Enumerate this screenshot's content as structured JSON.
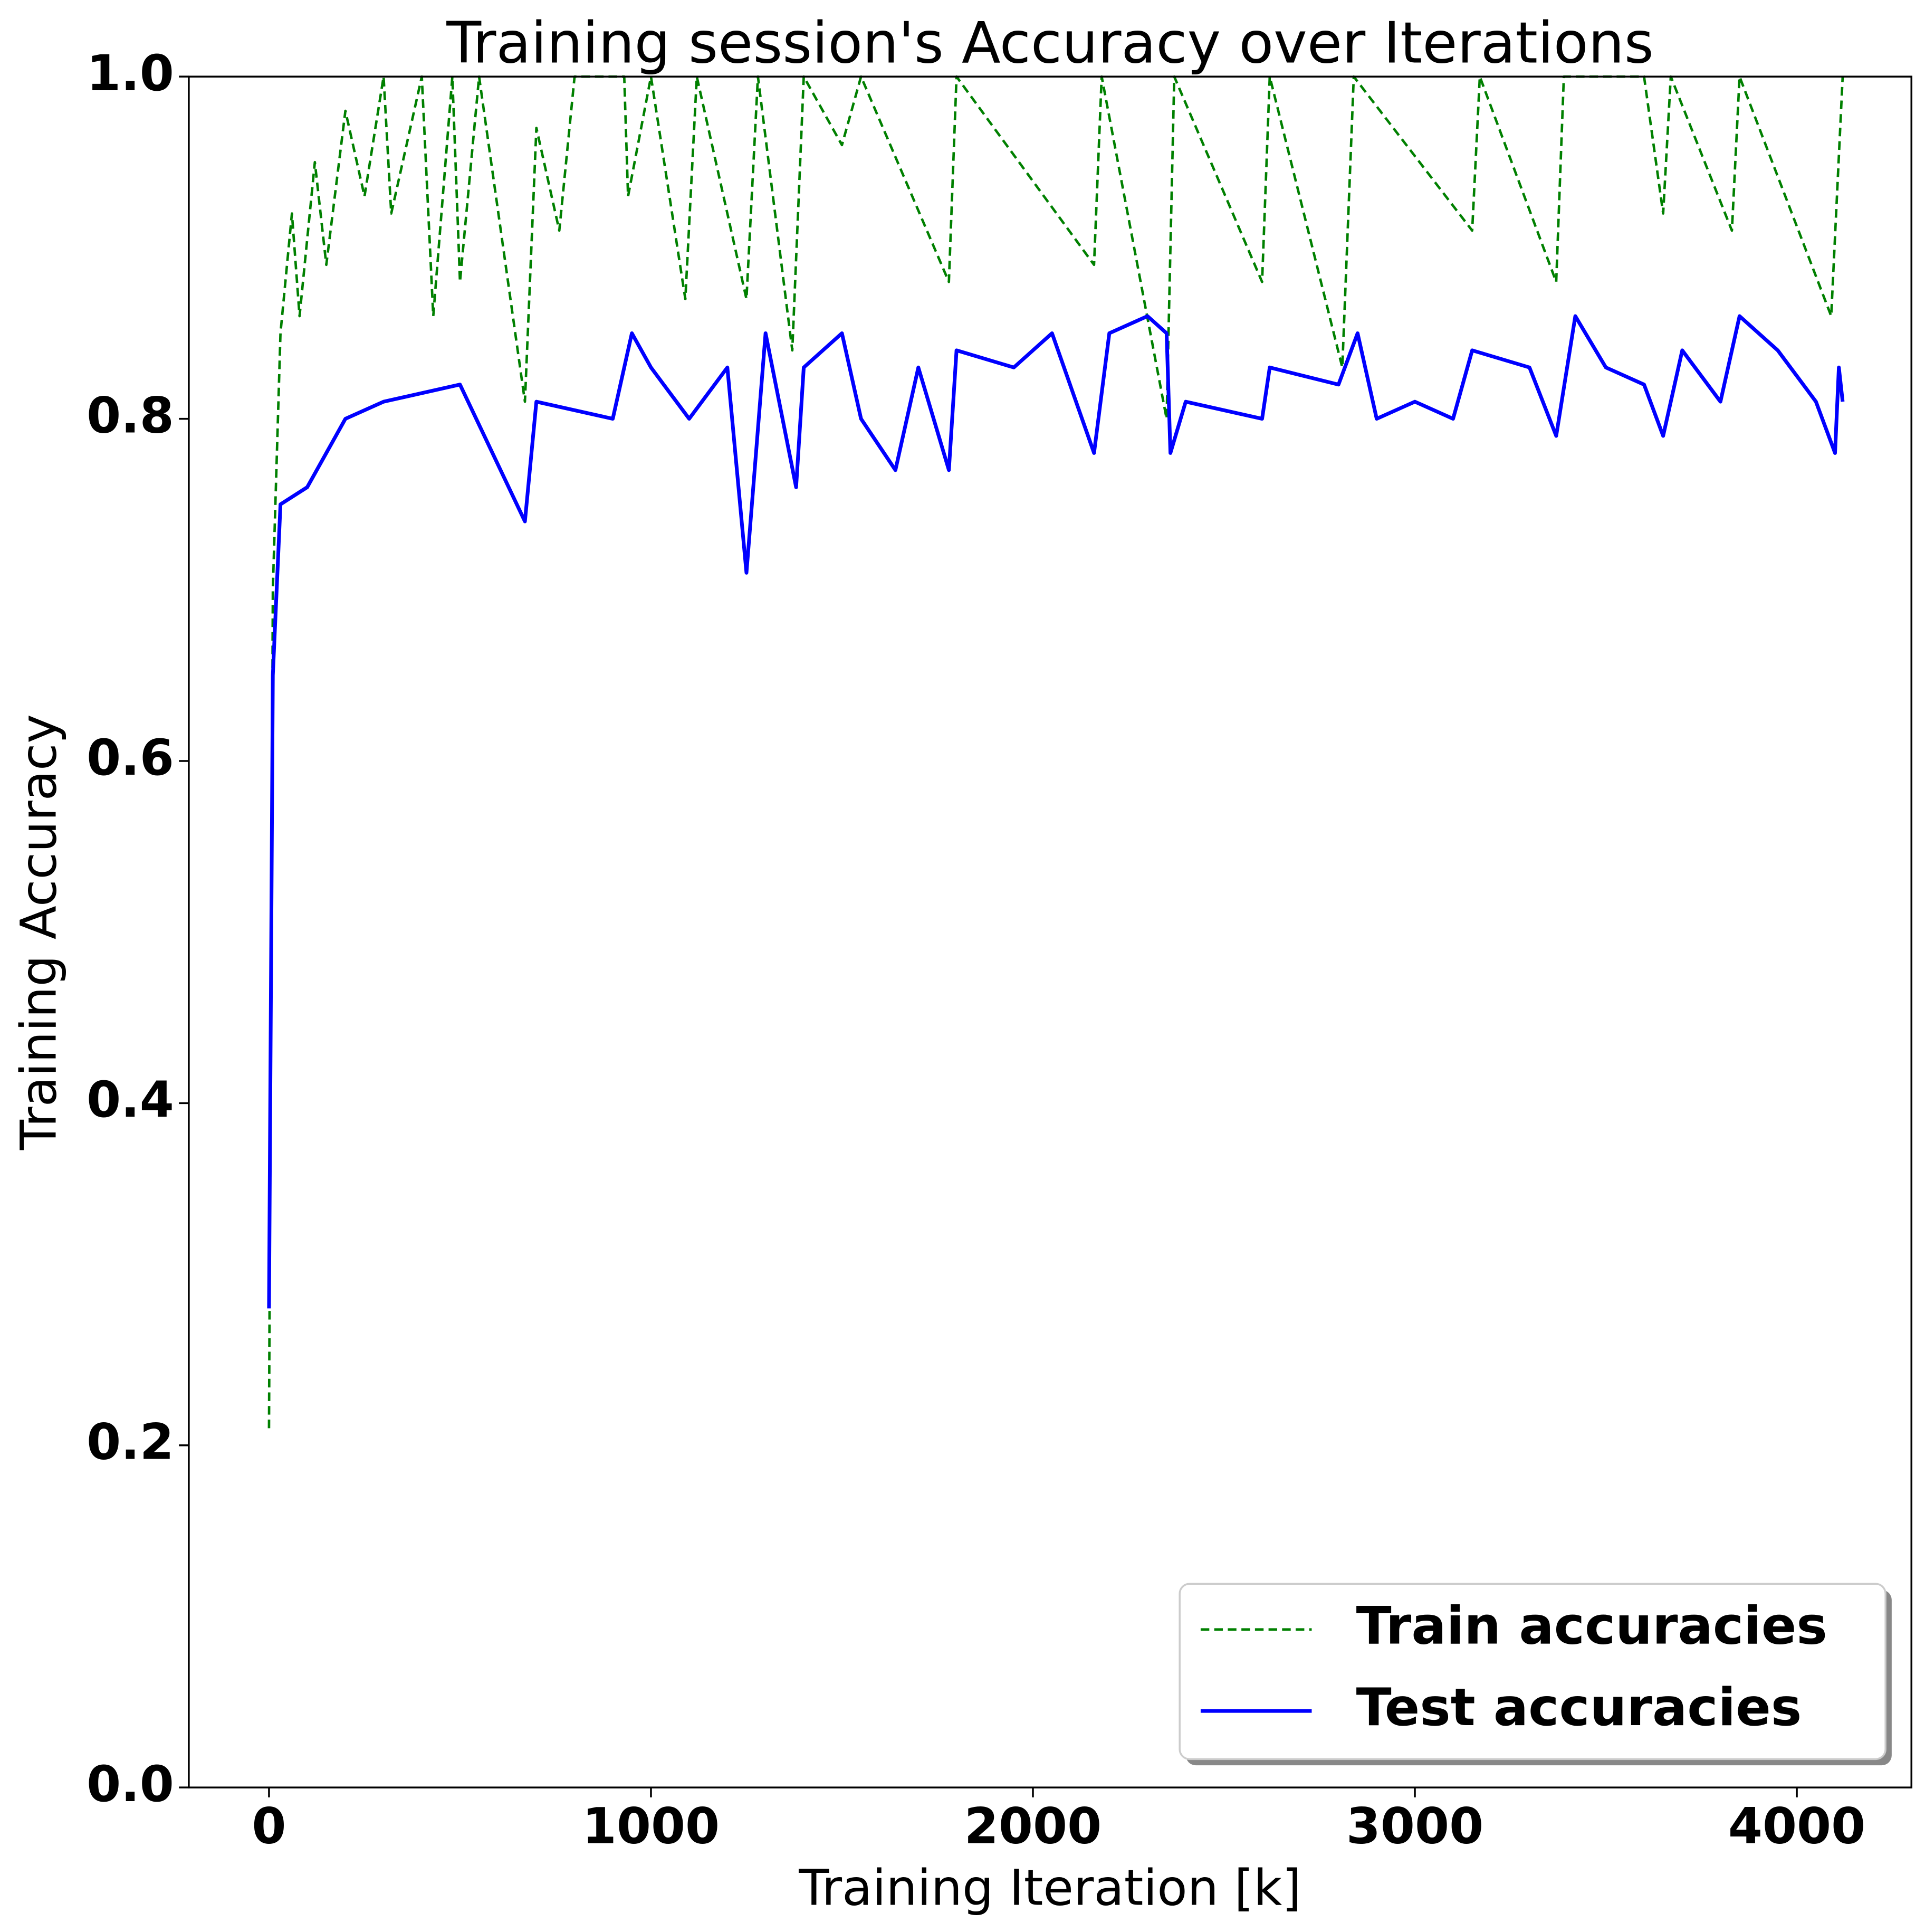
{
  "chart_data": {
    "type": "line",
    "title": "Training session's Accuracy over Iterations",
    "xlabel": "Training Iteration [k]",
    "ylabel": "Training Accuracy",
    "xlim": [
      -210,
      4300
    ],
    "ylim": [
      0,
      1
    ],
    "xticks": [
      0,
      1000,
      2000,
      3000,
      4000
    ],
    "yticks": [
      {
        "value": 0,
        "label": "0.0"
      },
      0.2,
      0.4,
      0.6,
      0.8,
      {
        "value": 1,
        "label": "1.0"
      }
    ],
    "legend": "lower right",
    "series": [
      {
        "name": "Train accuracies",
        "color": "#008000",
        "dash": true,
        "x": [
          0,
          10,
          30,
          60,
          80,
          120,
          150,
          200,
          250,
          300,
          320,
          400,
          430,
          480,
          500,
          550,
          670,
          700,
          760,
          800,
          930,
          940,
          1000,
          1090,
          1120,
          1250,
          1280,
          1370,
          1400,
          1500,
          1550,
          1780,
          1800,
          2160,
          2180,
          2350,
          2370,
          2600,
          2620,
          2810,
          2840,
          3150,
          3170,
          3370,
          3390,
          3600,
          3650,
          3670,
          3830,
          3850,
          4090,
          4120
        ],
        "values": [
          0.21,
          0.7,
          0.85,
          0.92,
          0.86,
          0.95,
          0.89,
          0.98,
          0.93,
          1.0,
          0.92,
          1.0,
          0.86,
          1.0,
          0.88,
          1.0,
          0.81,
          0.97,
          0.91,
          1.0,
          1.0,
          0.93,
          1.0,
          0.87,
          1.0,
          0.87,
          1.0,
          0.84,
          1.0,
          0.96,
          1.0,
          0.88,
          1.0,
          0.89,
          1.0,
          0.8,
          1.0,
          0.88,
          1.0,
          0.83,
          1.0,
          0.91,
          1.0,
          0.88,
          1.0,
          1.0,
          0.92,
          1.0,
          0.91,
          1.0,
          0.86,
          1.0
        ]
      },
      {
        "name": "Test accuracies",
        "color": "#0000ff",
        "dash": false,
        "x": [
          0,
          10,
          30,
          100,
          200,
          300,
          500,
          670,
          700,
          900,
          950,
          1000,
          1100,
          1200,
          1250,
          1300,
          1380,
          1400,
          1500,
          1550,
          1640,
          1700,
          1780,
          1800,
          1950,
          2050,
          2160,
          2200,
          2300,
          2350,
          2360,
          2400,
          2600,
          2620,
          2800,
          2850,
          2900,
          3000,
          3100,
          3150,
          3300,
          3370,
          3420,
          3500,
          3600,
          3650,
          3700,
          3800,
          3850,
          3950,
          4050,
          4100,
          4110,
          4120
        ],
        "values": [
          0.28,
          0.65,
          0.75,
          0.76,
          0.8,
          0.81,
          0.82,
          0.74,
          0.81,
          0.8,
          0.85,
          0.83,
          0.8,
          0.83,
          0.71,
          0.85,
          0.76,
          0.83,
          0.85,
          0.8,
          0.77,
          0.83,
          0.77,
          0.84,
          0.83,
          0.85,
          0.78,
          0.85,
          0.86,
          0.85,
          0.78,
          0.81,
          0.8,
          0.83,
          0.82,
          0.85,
          0.8,
          0.81,
          0.8,
          0.84,
          0.83,
          0.79,
          0.86,
          0.83,
          0.82,
          0.79,
          0.84,
          0.81,
          0.86,
          0.84,
          0.81,
          0.78,
          0.83,
          0.81
        ]
      }
    ]
  }
}
